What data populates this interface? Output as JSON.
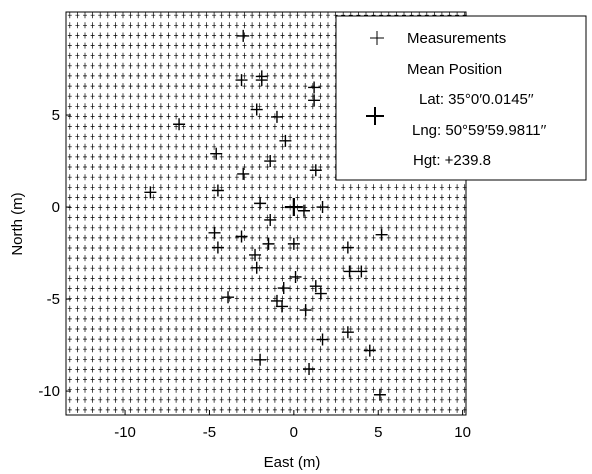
{
  "chart_data": {
    "type": "scatter",
    "title": "",
    "xlabel": "East (m)",
    "ylabel": "North (m)",
    "xlim": [
      -13.5,
      10.2
    ],
    "ylim": [
      -11.3,
      10.6
    ],
    "xticks": [
      "-10",
      "-5",
      "0",
      "5",
      "10"
    ],
    "xtick_values": [
      -10,
      -5,
      0,
      5,
      10
    ],
    "yticks": [
      "5",
      "0",
      "-5",
      "-10"
    ],
    "ytick_values": [
      5,
      0,
      -5,
      -10
    ],
    "grid": false,
    "background_marker_grid": {
      "x_step": 0.45,
      "y_step": 0.55,
      "marker": "+"
    },
    "legend": {
      "placement": "top-right",
      "entries": [
        {
          "label": "Measurements",
          "marker": "+"
        },
        {
          "label": "Mean Position",
          "marker": "+ (large)"
        }
      ],
      "mean_lat": "Lat: 35°0′0.0145′′",
      "mean_lng": "Lng: 50°59′59.9811′′",
      "mean_hgt": "Hgt: +239.8"
    },
    "mean_position": {
      "x": 0.0,
      "y": 0.0
    },
    "series": [
      {
        "name": "Measurements",
        "points": [
          [
            -3,
            9.3
          ],
          [
            -1.9,
            6.9
          ],
          [
            -3.1,
            6.9
          ],
          [
            -1.9,
            7.1
          ],
          [
            1.2,
            6.5
          ],
          [
            1.2,
            5.8
          ],
          [
            -6.8,
            4.5
          ],
          [
            -2.2,
            5.3
          ],
          [
            -1.0,
            4.9
          ],
          [
            -0.5,
            3.6
          ],
          [
            -4.6,
            2.9
          ],
          [
            -1.4,
            2.5
          ],
          [
            1.3,
            2.0
          ],
          [
            -3.0,
            1.8
          ],
          [
            -8.5,
            0.8
          ],
          [
            -4.5,
            0.9
          ],
          [
            1.7,
            0.0
          ],
          [
            -2.0,
            0.2
          ],
          [
            0.6,
            -0.2
          ],
          [
            -1.4,
            -0.7
          ],
          [
            -4.7,
            -1.4
          ],
          [
            -3.1,
            -1.6
          ],
          [
            5.2,
            -1.5
          ],
          [
            -4.5,
            -2.2
          ],
          [
            -1.5,
            -2.0
          ],
          [
            -2.3,
            -2.6
          ],
          [
            3.2,
            -2.2
          ],
          [
            0.0,
            -2.0
          ],
          [
            -2.2,
            -3.3
          ],
          [
            3.3,
            -3.5
          ],
          [
            4.0,
            -3.5
          ],
          [
            0.1,
            -3.8
          ],
          [
            -0.6,
            -4.4
          ],
          [
            1.3,
            -4.3
          ],
          [
            1.6,
            -4.7
          ],
          [
            -3.9,
            -4.9
          ],
          [
            -1.0,
            -5.1
          ],
          [
            -0.7,
            -5.4
          ],
          [
            0.7,
            -5.6
          ],
          [
            3.2,
            -6.8
          ],
          [
            1.7,
            -7.2
          ],
          [
            4.5,
            -7.8
          ],
          [
            -2.0,
            -8.3
          ],
          [
            0.9,
            -8.8
          ],
          [
            5.1,
            -10.2
          ]
        ]
      }
    ]
  }
}
